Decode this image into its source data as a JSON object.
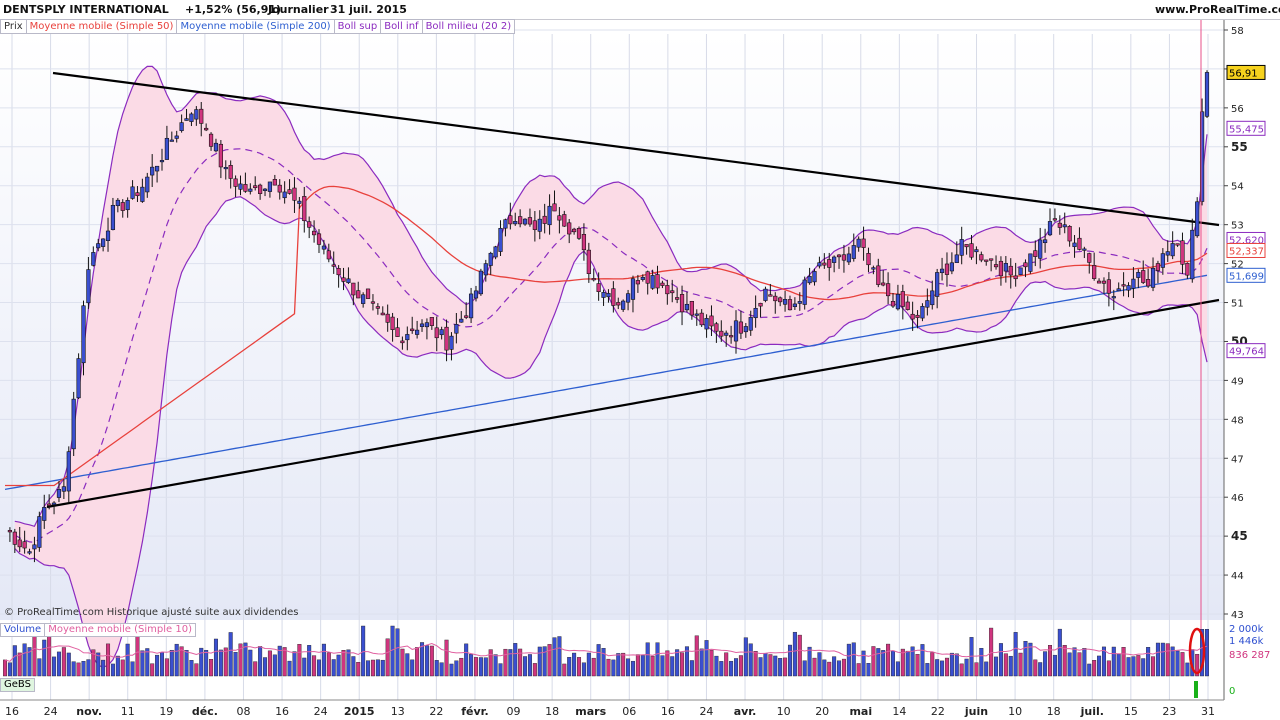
{
  "header": {
    "title": "DENTSPLY INTERNATIONAL",
    "change": "+1,52% (56,91)",
    "period": "Journalier",
    "date": "31 juil. 2015",
    "site": "www.ProRealTime.com"
  },
  "legend": {
    "price": "Prix",
    "ma50": "Moyenne mobile (Simple 50)",
    "ma200": "Moyenne mobile (Simple 200)",
    "boll_sup": "Boll sup",
    "boll_inf": "Boll inf",
    "boll_mid": "Boll milieu (20 2)"
  },
  "volume_legend": {
    "volume": "Volume",
    "vol_ma": "Moyenne mobile (Simple 10)"
  },
  "gebs_legend": "GeBS",
  "copyright": "© ProRealTime.com  Historique ajusté suite aux dividendes",
  "colors": {
    "ma50": "#e8413c",
    "ma200": "#2e5fd0",
    "boll": "#8b2bbf",
    "boll_fill": "#fbdbe6",
    "bg": "#eceef8",
    "up_candle": "#3a4fd0",
    "down_candle": "#d0357f",
    "trend": "#000000"
  },
  "chart_data": {
    "type": "candlestick",
    "y_axis": {
      "min": 43,
      "max": 58,
      "ticks": [
        "58",
        "57",
        "56",
        "55",
        "54",
        "53",
        "52",
        "51",
        "50",
        "49",
        "48",
        "47",
        "46",
        "45",
        "44",
        "43"
      ],
      "bold_ticks": [
        "55",
        "50",
        "45"
      ]
    },
    "x_labels": [
      "16",
      "24",
      "nov.",
      "11",
      "19",
      "déc.",
      "08",
      "16",
      "24",
      "2015",
      "13",
      "22",
      "févr.",
      "09",
      "18",
      "mars",
      "06",
      "16",
      "24",
      "avr.",
      "10",
      "20",
      "mai",
      "14",
      "22",
      "juin",
      "10",
      "18",
      "juil.",
      "15",
      "23",
      "31"
    ],
    "bold_x_labels": [
      "nov.",
      "déc.",
      "2015",
      "févr.",
      "mars",
      "avr.",
      "mai",
      "juin",
      "juil."
    ],
    "last_price": "56,91",
    "indicator_values": {
      "boll_sup": "55,475",
      "ma50": "52,620",
      "boll_mid": "52,337",
      "ma200": "51,699",
      "boll_inf": "49,764"
    },
    "trendlines": [
      {
        "name": "resistance",
        "from": [
          "16 oct.",
          57.0
        ],
        "to": [
          "31 juil.",
          53.0
        ]
      },
      {
        "name": "support",
        "from": [
          "24 oct.",
          45.85
        ],
        "to": [
          "31 juil.",
          51.1
        ]
      }
    ],
    "close_anchors": [
      [
        0,
        45.2
      ],
      [
        5,
        44.6
      ],
      [
        8,
        45.7
      ],
      [
        12,
        46.2
      ],
      [
        17,
        52.0
      ],
      [
        22,
        53.3
      ],
      [
        28,
        54.0
      ],
      [
        34,
        55.2
      ],
      [
        38,
        56.0
      ],
      [
        41,
        55.5
      ],
      [
        45,
        54.3
      ],
      [
        50,
        53.8
      ],
      [
        55,
        54.2
      ],
      [
        60,
        53.4
      ],
      [
        65,
        52.3
      ],
      [
        70,
        51.5
      ],
      [
        75,
        50.8
      ],
      [
        80,
        50.1
      ],
      [
        85,
        50.5
      ],
      [
        90,
        50.0
      ],
      [
        95,
        51.0
      ],
      [
        100,
        52.6
      ],
      [
        104,
        53.3
      ],
      [
        108,
        52.8
      ],
      [
        112,
        53.5
      ],
      [
        116,
        52.8
      ],
      [
        120,
        51.6
      ],
      [
        125,
        51.0
      ],
      [
        130,
        51.8
      ],
      [
        135,
        51.4
      ],
      [
        140,
        50.7
      ],
      [
        145,
        50.2
      ],
      [
        150,
        50.4
      ],
      [
        155,
        51.3
      ],
      [
        160,
        50.8
      ],
      [
        165,
        51.8
      ],
      [
        170,
        52.0
      ],
      [
        174,
        52.5
      ],
      [
        178,
        51.4
      ],
      [
        182,
        51.0
      ],
      [
        186,
        50.5
      ],
      [
        190,
        51.6
      ],
      [
        195,
        52.4
      ],
      [
        200,
        52.2
      ],
      [
        205,
        51.7
      ],
      [
        210,
        52.3
      ],
      [
        214,
        53.1
      ],
      [
        218,
        52.6
      ],
      [
        222,
        51.8
      ],
      [
        226,
        51.2
      ],
      [
        230,
        51.8
      ],
      [
        233,
        51.4
      ],
      [
        236,
        52.3
      ],
      [
        239,
        52.7
      ],
      [
        241,
        51.6
      ],
      [
        243,
        53.8
      ],
      [
        244,
        55.9
      ],
      [
        245,
        56.91
      ]
    ],
    "volume_axis": {
      "ticks": [
        "2 000k",
        "1 446k",
        "836 287"
      ]
    }
  }
}
